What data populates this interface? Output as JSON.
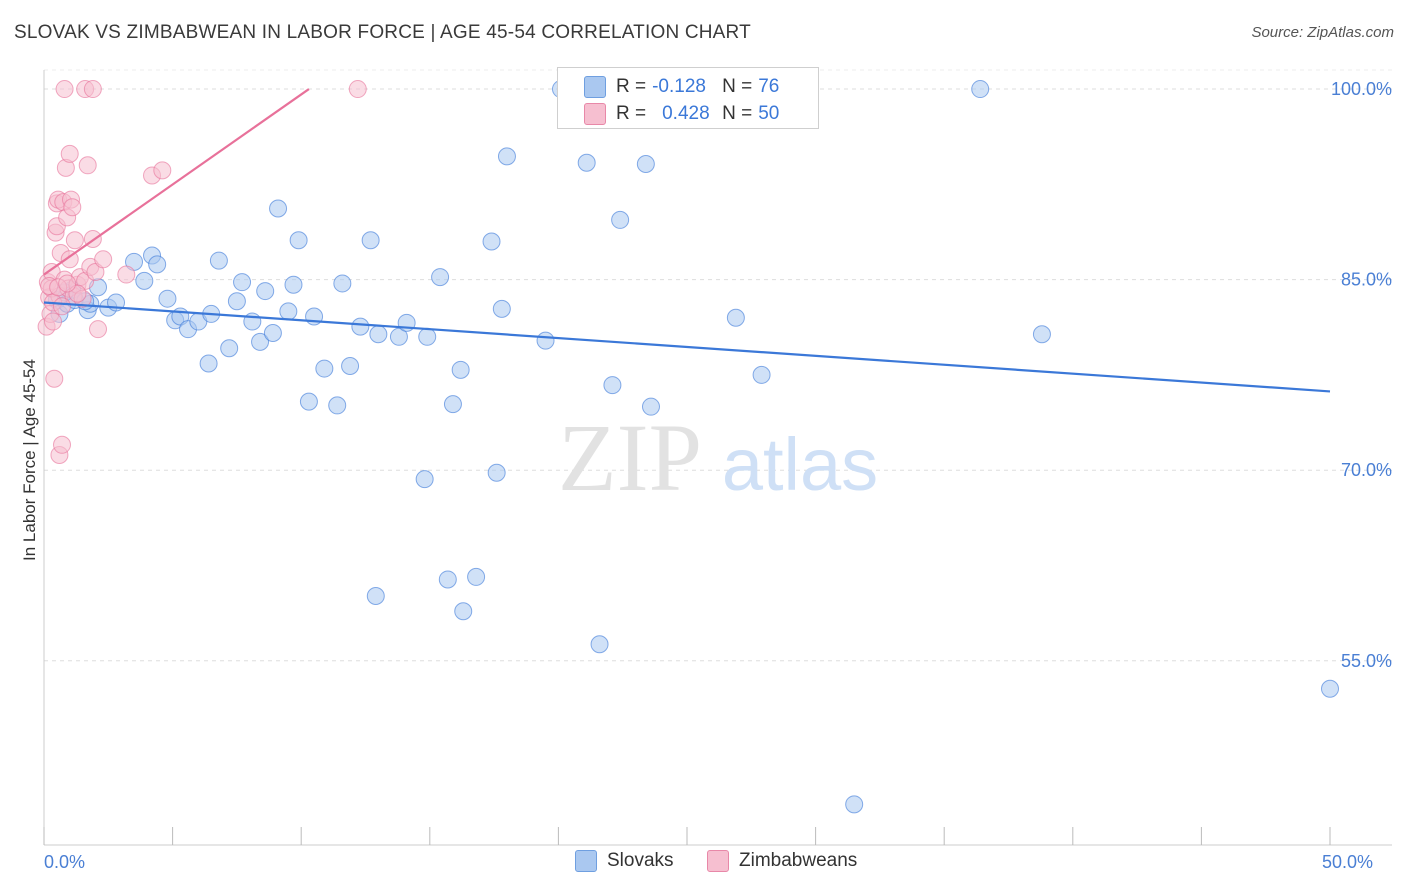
{
  "title": "SLOVAK VS ZIMBABWEAN IN LABOR FORCE | AGE 45-54 CORRELATION CHART",
  "source": "Source: ZipAtlas.com",
  "watermark": {
    "zip": "ZIP",
    "atlas": "atlas"
  },
  "legend": {
    "r_label": "R =",
    "n_label": "N =",
    "series": [
      {
        "name": "Slovaks",
        "r": "-0.128",
        "n": "76",
        "fill": "#aac8f0",
        "stroke": "#6f9fe0"
      },
      {
        "name": "Zimbabweans",
        "r": "0.428",
        "n": "50",
        "fill": "#f6bfd0",
        "stroke": "#e888a8"
      }
    ]
  },
  "chart_data": {
    "type": "scatter",
    "title": "SLOVAK VS ZIMBABWEAN IN LABOR FORCE | AGE 45-54 CORRELATION CHART",
    "xlabel": "",
    "ylabel": "In Labor Force | Age 45-54",
    "xlim": [
      0,
      50
    ],
    "ylim": [
      40.5,
      101.5
    ],
    "x_tick_labels": {
      "min": "0.0%",
      "max": "50.0%"
    },
    "y_ticks": [
      100,
      85,
      70,
      55
    ],
    "y_tick_labels": [
      "100.0%",
      "85.0%",
      "70.0%",
      "55.0%"
    ],
    "series": [
      {
        "name": "Slovaks",
        "color": "#3b78d8",
        "fill": "#aac8f0",
        "trendline": {
          "x": [
            0,
            50
          ],
          "y": [
            83.2,
            76.2
          ]
        },
        "points": [
          [
            0.5,
            83.4
          ],
          [
            0.6,
            82.3
          ],
          [
            0.9,
            83.1
          ],
          [
            1.1,
            84.2
          ],
          [
            1.2,
            83.4
          ],
          [
            1.7,
            82.6
          ],
          [
            1.8,
            83.1
          ],
          [
            2.1,
            84.4
          ],
          [
            2.5,
            82.8
          ],
          [
            2.8,
            83.2
          ],
          [
            3.5,
            86.4
          ],
          [
            3.9,
            84.9
          ],
          [
            4.2,
            86.9
          ],
          [
            4.4,
            86.2
          ],
          [
            4.8,
            83.5
          ],
          [
            5.1,
            81.8
          ],
          [
            5.3,
            82.1
          ],
          [
            5.6,
            81.1
          ],
          [
            6.0,
            81.7
          ],
          [
            6.4,
            78.4
          ],
          [
            6.5,
            82.3
          ],
          [
            6.8,
            86.5
          ],
          [
            7.2,
            79.6
          ],
          [
            7.5,
            83.3
          ],
          [
            7.7,
            84.8
          ],
          [
            8.1,
            81.7
          ],
          [
            8.4,
            80.1
          ],
          [
            8.6,
            84.1
          ],
          [
            8.9,
            80.8
          ],
          [
            9.1,
            90.6
          ],
          [
            9.5,
            82.5
          ],
          [
            9.7,
            84.6
          ],
          [
            9.9,
            88.1
          ],
          [
            10.3,
            75.4
          ],
          [
            10.5,
            82.1
          ],
          [
            10.9,
            78.0
          ],
          [
            11.4,
            75.1
          ],
          [
            11.6,
            84.7
          ],
          [
            11.9,
            78.2
          ],
          [
            12.3,
            81.3
          ],
          [
            12.9,
            60.1
          ],
          [
            12.7,
            88.1
          ],
          [
            13.0,
            80.7
          ],
          [
            13.8,
            80.5
          ],
          [
            14.1,
            81.6
          ],
          [
            14.8,
            69.3
          ],
          [
            14.9,
            80.5
          ],
          [
            15.4,
            85.2
          ],
          [
            15.7,
            61.4
          ],
          [
            15.9,
            75.2
          ],
          [
            16.2,
            77.9
          ],
          [
            16.3,
            58.9
          ],
          [
            16.8,
            61.6
          ],
          [
            17.4,
            88.0
          ],
          [
            17.6,
            69.8
          ],
          [
            17.8,
            82.7
          ],
          [
            18.0,
            94.7
          ],
          [
            19.5,
            80.2
          ],
          [
            20.1,
            100.0
          ],
          [
            21.1,
            94.2
          ],
          [
            21.6,
            56.3
          ],
          [
            22.1,
            76.7
          ],
          [
            22.4,
            89.7
          ],
          [
            23.4,
            94.1
          ],
          [
            23.6,
            75.0
          ],
          [
            25.1,
            100.0
          ],
          [
            26.1,
            100.0
          ],
          [
            26.9,
            82.0
          ],
          [
            27.9,
            77.5
          ],
          [
            28.7,
            100.0
          ],
          [
            31.5,
            43.7
          ],
          [
            36.4,
            100.0
          ],
          [
            38.8,
            80.7
          ],
          [
            50.0,
            52.8
          ],
          [
            1.6,
            83.3
          ],
          [
            0.8,
            84.0
          ]
        ]
      },
      {
        "name": "Zimbabweans",
        "color": "#e8719a",
        "fill": "#f6bfd0",
        "trendline": {
          "x": [
            0,
            10.3
          ],
          "y": [
            85.4,
            100.0
          ]
        },
        "points": [
          [
            0.1,
            81.3
          ],
          [
            0.15,
            84.8
          ],
          [
            0.2,
            83.6
          ],
          [
            0.25,
            82.3
          ],
          [
            0.3,
            85.6
          ],
          [
            0.3,
            84.3
          ],
          [
            0.35,
            81.7
          ],
          [
            0.4,
            77.2
          ],
          [
            0.45,
            88.7
          ],
          [
            0.5,
            89.2
          ],
          [
            0.5,
            91.0
          ],
          [
            0.55,
            91.3
          ],
          [
            0.6,
            71.2
          ],
          [
            0.6,
            83.7
          ],
          [
            0.65,
            87.1
          ],
          [
            0.7,
            72.0
          ],
          [
            0.75,
            91.1
          ],
          [
            0.8,
            85.0
          ],
          [
            0.85,
            93.8
          ],
          [
            0.9,
            89.9
          ],
          [
            0.95,
            84.3
          ],
          [
            1.0,
            86.6
          ],
          [
            1.0,
            94.9
          ],
          [
            1.05,
            91.3
          ],
          [
            1.1,
            90.7
          ],
          [
            1.15,
            83.7
          ],
          [
            1.2,
            88.1
          ],
          [
            1.3,
            84.6
          ],
          [
            1.4,
            85.2
          ],
          [
            1.5,
            83.5
          ],
          [
            1.6,
            84.9
          ],
          [
            1.7,
            94.0
          ],
          [
            1.8,
            86.0
          ],
          [
            1.9,
            88.2
          ],
          [
            2.0,
            85.6
          ],
          [
            2.1,
            81.1
          ],
          [
            2.3,
            86.6
          ],
          [
            0.8,
            100.0
          ],
          [
            1.6,
            100.0
          ],
          [
            1.9,
            100.0
          ],
          [
            3.2,
            85.4
          ],
          [
            4.2,
            93.2
          ],
          [
            4.6,
            93.6
          ],
          [
            12.2,
            100.0
          ],
          [
            0.2,
            84.5
          ],
          [
            0.35,
            83.2
          ],
          [
            0.55,
            84.4
          ],
          [
            0.7,
            82.9
          ],
          [
            1.3,
            83.9
          ],
          [
            0.9,
            84.7
          ]
        ]
      }
    ]
  }
}
